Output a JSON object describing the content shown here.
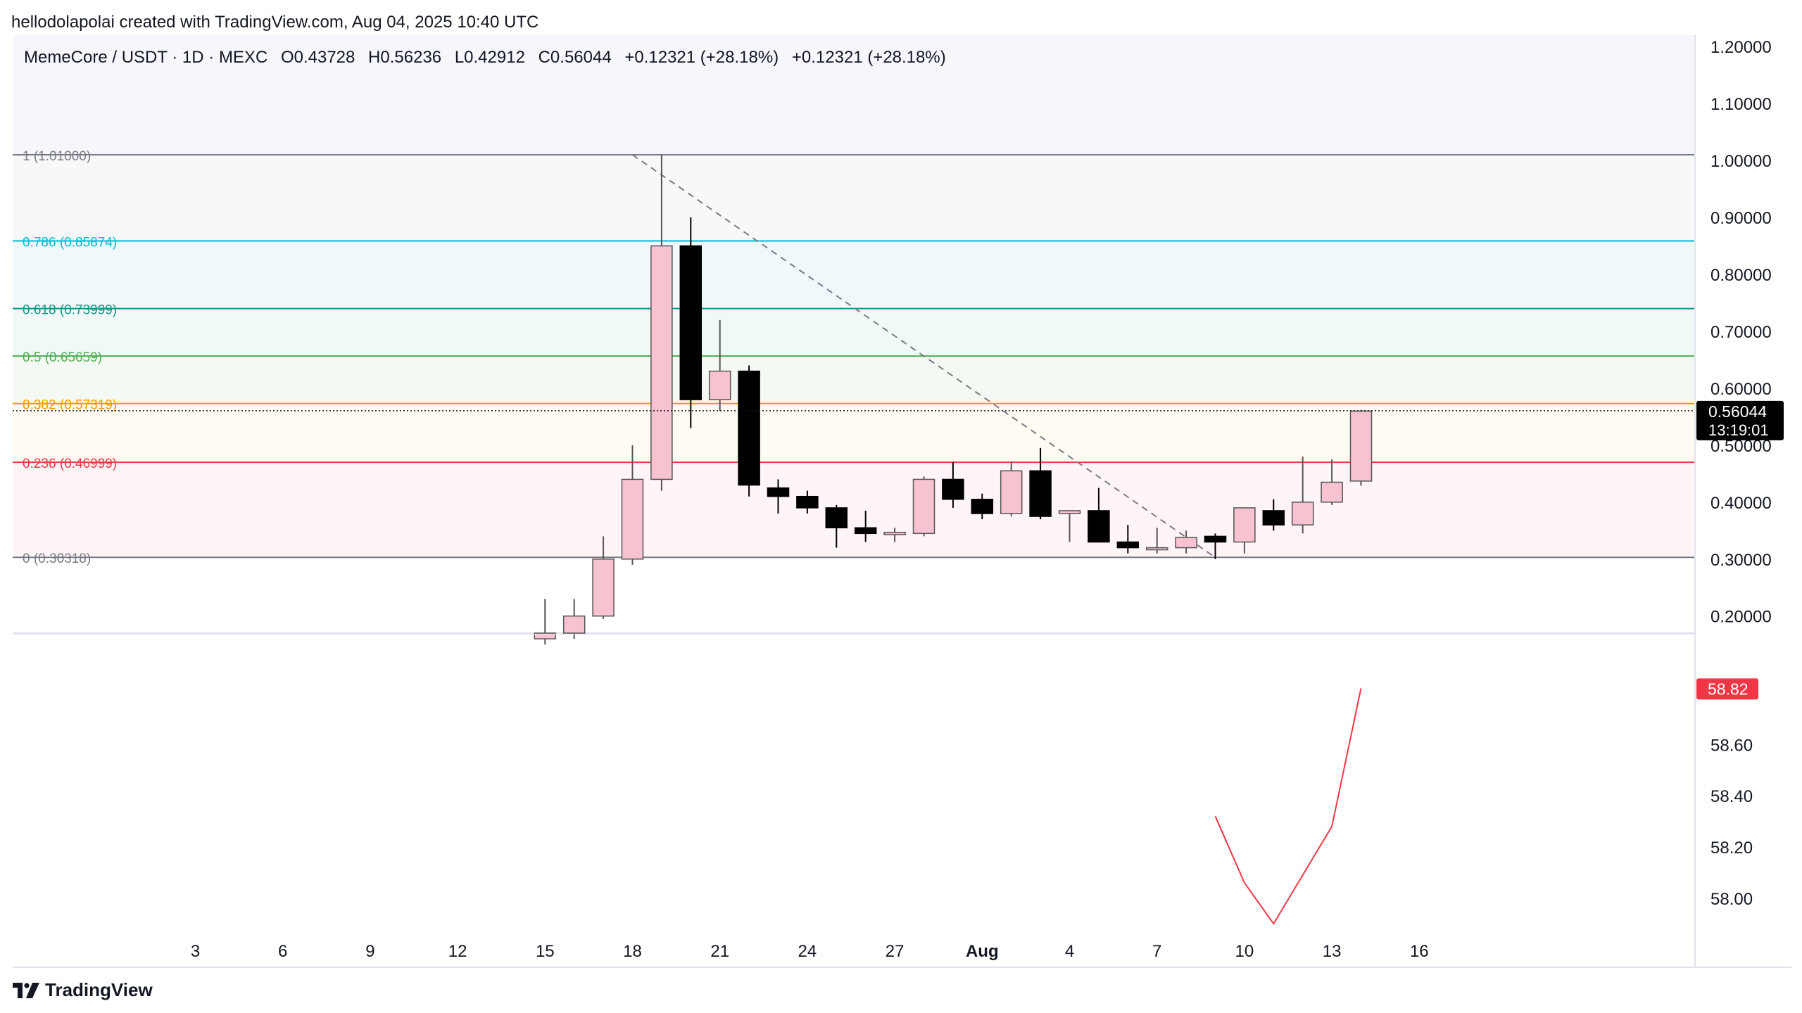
{
  "header": {
    "attribution": "hellodolapolai created with TradingView.com, Aug 04, 2025 10:40 UTC"
  },
  "legend": {
    "symbol": "MemeCore / USDT · 1D · MEXC",
    "open": "O0.43728",
    "high": "H0.56236",
    "low": "L0.42912",
    "close": "C0.56044",
    "change1": "+0.12321 (+28.18%)",
    "change2": "+0.12321 (+28.18%)"
  },
  "brand": {
    "name": "TradingView"
  },
  "colors": {
    "up": "#f8c3d1",
    "down": "#000000",
    "rsi": "#f23645",
    "fib_236": "#f23645",
    "fib_382": "#ff9800",
    "fib_5": "#4caf50",
    "fib_618": "#089981",
    "fib_786": "#00bcd4",
    "fib_edge": "#787b86"
  },
  "chart_data": [
    {
      "type": "candlestick",
      "title": "MemeCore / USDT · 1D · MEXC",
      "ylim": [
        0.17,
        1.22
      ],
      "y_ticks": [
        "1.20000",
        "1.10000",
        "1.00000",
        "0.90000",
        "0.80000",
        "0.70000",
        "0.60000",
        "0.50000",
        "0.40000",
        "0.30000",
        "0.20000"
      ],
      "x_ticks": [
        "3",
        "6",
        "9",
        "12",
        "15",
        "18",
        "21",
        "24",
        "27",
        "Aug",
        "4",
        "7",
        "10",
        "13",
        "16"
      ],
      "last_price": {
        "value": "0.56044",
        "countdown": "13:19:01"
      },
      "fib_levels": [
        {
          "label": "1 (1.01000)",
          "value": 1.01
        },
        {
          "label": "0.786 (0.85874)",
          "value": 0.85874
        },
        {
          "label": "0.618 (0.73999)",
          "value": 0.73999
        },
        {
          "label": "0.5 (0.65659)",
          "value": 0.65659
        },
        {
          "label": "0.382 (0.57319)",
          "value": 0.57319
        },
        {
          "label": "0.236 (0.46999)",
          "value": 0.46999
        },
        {
          "label": "0 (0.30318)",
          "value": 0.30318
        }
      ],
      "trend_line": {
        "from": {
          "day": 10,
          "price": 1.01
        },
        "to": {
          "day": 30,
          "price": 0.303
        }
      },
      "candles": [
        {
          "day": 7,
          "o": 0.16,
          "h": 0.23,
          "l": 0.15,
          "c": 0.17
        },
        {
          "day": 8,
          "o": 0.17,
          "h": 0.23,
          "l": 0.16,
          "c": 0.2
        },
        {
          "day": 9,
          "o": 0.2,
          "h": 0.34,
          "l": 0.195,
          "c": 0.3
        },
        {
          "day": 10,
          "o": 0.3,
          "h": 0.5,
          "l": 0.29,
          "c": 0.44
        },
        {
          "day": 11,
          "o": 0.44,
          "h": 1.01,
          "l": 0.42,
          "c": 0.85
        },
        {
          "day": 12,
          "o": 0.85,
          "h": 0.9,
          "l": 0.53,
          "c": 0.58
        },
        {
          "day": 13,
          "o": 0.58,
          "h": 0.72,
          "l": 0.56,
          "c": 0.63
        },
        {
          "day": 14,
          "o": 0.63,
          "h": 0.64,
          "l": 0.41,
          "c": 0.43
        },
        {
          "day": 15,
          "o": 0.425,
          "h": 0.44,
          "l": 0.38,
          "c": 0.41
        },
        {
          "day": 16,
          "o": 0.41,
          "h": 0.42,
          "l": 0.38,
          "c": 0.39
        },
        {
          "day": 17,
          "o": 0.39,
          "h": 0.395,
          "l": 0.32,
          "c": 0.355
        },
        {
          "day": 18,
          "o": 0.355,
          "h": 0.385,
          "l": 0.33,
          "c": 0.345
        },
        {
          "day": 19,
          "o": 0.343,
          "h": 0.355,
          "l": 0.33,
          "c": 0.347
        },
        {
          "day": 20,
          "o": 0.345,
          "h": 0.445,
          "l": 0.34,
          "c": 0.44
        },
        {
          "day": 21,
          "o": 0.44,
          "h": 0.47,
          "l": 0.39,
          "c": 0.405
        },
        {
          "day": 22,
          "o": 0.405,
          "h": 0.415,
          "l": 0.37,
          "c": 0.38
        },
        {
          "day": 23,
          "o": 0.38,
          "h": 0.47,
          "l": 0.375,
          "c": 0.455
        },
        {
          "day": 24,
          "o": 0.455,
          "h": 0.495,
          "l": 0.37,
          "c": 0.375
        },
        {
          "day": 25,
          "o": 0.38,
          "h": 0.385,
          "l": 0.33,
          "c": 0.385
        },
        {
          "day": 26,
          "o": 0.385,
          "h": 0.425,
          "l": 0.33,
          "c": 0.33
        },
        {
          "day": 27,
          "o": 0.33,
          "h": 0.36,
          "l": 0.31,
          "c": 0.32
        },
        {
          "day": 28,
          "o": 0.318,
          "h": 0.355,
          "l": 0.31,
          "c": 0.32
        },
        {
          "day": 29,
          "o": 0.32,
          "h": 0.35,
          "l": 0.31,
          "c": 0.338
        },
        {
          "day": 30,
          "o": 0.34,
          "h": 0.345,
          "l": 0.3,
          "c": 0.33
        },
        {
          "day": 31,
          "o": 0.33,
          "h": 0.39,
          "l": 0.31,
          "c": 0.39
        },
        {
          "day": 32,
          "o": 0.385,
          "h": 0.405,
          "l": 0.35,
          "c": 0.36
        },
        {
          "day": 33,
          "o": 0.36,
          "h": 0.48,
          "l": 0.345,
          "c": 0.4
        },
        {
          "day": 34,
          "o": 0.4,
          "h": 0.475,
          "l": 0.395,
          "c": 0.435
        },
        {
          "day": 35,
          "o": 0.437,
          "h": 0.562,
          "l": 0.429,
          "c": 0.56
        }
      ]
    },
    {
      "type": "line",
      "ylim": [
        57.73,
        59.03
      ],
      "y_ticks": [
        "58.60",
        "58.40",
        "58.20",
        "58.00"
      ],
      "last_value": "58.82",
      "x": [
        30,
        31,
        32,
        33,
        34,
        35
      ],
      "values": [
        58.32,
        58.06,
        57.9,
        58.09,
        58.28,
        58.82
      ]
    }
  ]
}
